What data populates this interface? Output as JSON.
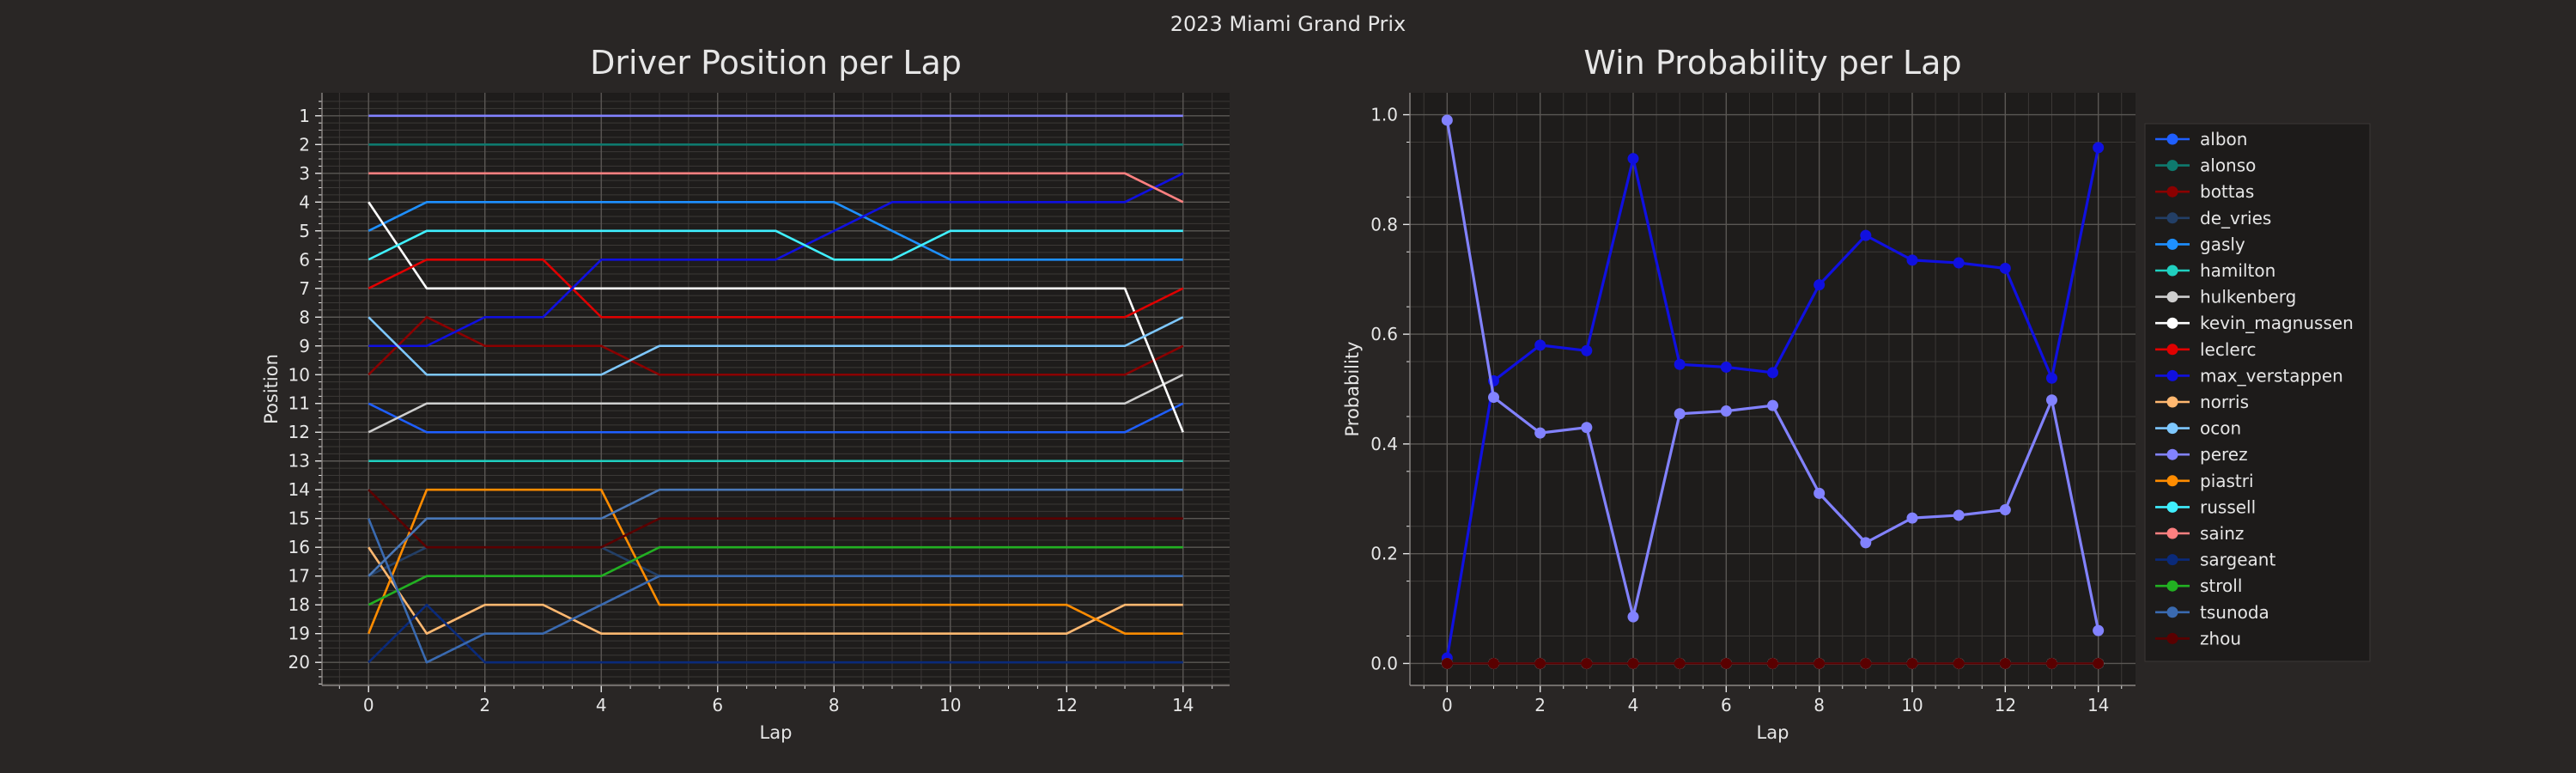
{
  "suptitle": "2023 Miami Grand Prix",
  "colors": {
    "background": "#292625",
    "plot_bg": "#1e1c1b",
    "text": "#e6e6e6",
    "grid_major": "#5a5754",
    "grid_minor": "#3b3836"
  },
  "chart_data": [
    {
      "type": "line",
      "title": "Driver Position per Lap",
      "xlabel": "Lap",
      "ylabel": "Position",
      "x": [
        0,
        1,
        2,
        3,
        4,
        5,
        6,
        7,
        8,
        9,
        10,
        11,
        12,
        13,
        14
      ],
      "xlim": [
        -0.8,
        14.8
      ],
      "xticks": [
        0,
        2,
        4,
        6,
        8,
        10,
        12,
        14
      ],
      "ylim": [
        20.8,
        0.2
      ],
      "yticks": [
        1,
        2,
        3,
        4,
        5,
        6,
        7,
        8,
        9,
        10,
        11,
        12,
        13,
        14,
        15,
        16,
        17,
        18,
        19,
        20
      ],
      "y_inverted": true,
      "grid": true,
      "legend": "none",
      "series": [
        {
          "color": "#1f5fff",
          "values": [
            11,
            12,
            12,
            12,
            12,
            12,
            12,
            12,
            12,
            12,
            12,
            12,
            12,
            12,
            11
          ]
        },
        {
          "color": "#0e7a6e",
          "values": [
            2,
            2,
            2,
            2,
            2,
            2,
            2,
            2,
            2,
            2,
            2,
            2,
            2,
            2,
            2
          ]
        },
        {
          "color": "#8b0000",
          "values": [
            10,
            8,
            9,
            9,
            9,
            10,
            10,
            10,
            10,
            10,
            10,
            10,
            10,
            10,
            9
          ]
        },
        {
          "color": "#233f66",
          "values": [
            17,
            16,
            16,
            16,
            16,
            17,
            17,
            17,
            17,
            17,
            17,
            17,
            17,
            17,
            17
          ]
        },
        {
          "color": "#1e90ff",
          "values": [
            5,
            4,
            4,
            4,
            4,
            4,
            4,
            4,
            4,
            5,
            6,
            6,
            6,
            6,
            6
          ]
        },
        {
          "color": "#20d0c0",
          "values": [
            13,
            13,
            13,
            13,
            13,
            13,
            13,
            13,
            13,
            13,
            13,
            13,
            13,
            13,
            13
          ]
        },
        {
          "color": "#cfcfcf",
          "values": [
            12,
            11,
            11,
            11,
            11,
            11,
            11,
            11,
            11,
            11,
            11,
            11,
            11,
            11,
            10
          ]
        },
        {
          "color": "#ffffff",
          "values": [
            4,
            7,
            7,
            7,
            7,
            7,
            7,
            7,
            7,
            7,
            7,
            7,
            7,
            7,
            12
          ]
        },
        {
          "color": "#e00000",
          "values": [
            7,
            6,
            6,
            6,
            8,
            8,
            8,
            8,
            8,
            8,
            8,
            8,
            8,
            8,
            7
          ]
        },
        {
          "color": "#1010e0",
          "values": [
            9,
            9,
            8,
            8,
            6,
            6,
            6,
            6,
            5,
            4,
            4,
            4,
            4,
            4,
            3
          ]
        },
        {
          "color": "#ffb870",
          "values": [
            16,
            19,
            18,
            18,
            19,
            19,
            19,
            19,
            19,
            19,
            19,
            19,
            19,
            18,
            18
          ]
        },
        {
          "color": "#7ec8ff",
          "values": [
            8,
            10,
            10,
            10,
            10,
            9,
            9,
            9,
            9,
            9,
            9,
            9,
            9,
            9,
            8
          ]
        },
        {
          "color": "#8282ff",
          "values": [
            1,
            1,
            1,
            1,
            1,
            1,
            1,
            1,
            1,
            1,
            1,
            1,
            1,
            1,
            1
          ]
        },
        {
          "color": "#ff8c00",
          "values": [
            19,
            14,
            14,
            14,
            14,
            18,
            18,
            18,
            18,
            18,
            18,
            18,
            18,
            19,
            19
          ]
        },
        {
          "color": "#40f0ff",
          "values": [
            6,
            5,
            5,
            5,
            5,
            5,
            5,
            5,
            6,
            6,
            5,
            5,
            5,
            5,
            5
          ]
        },
        {
          "color": "#ff8080",
          "values": [
            3,
            3,
            3,
            3,
            3,
            3,
            3,
            3,
            3,
            3,
            3,
            3,
            3,
            3,
            4
          ]
        },
        {
          "color": "#0a2a7a",
          "values": [
            20,
            18,
            20,
            20,
            20,
            20,
            20,
            20,
            20,
            20,
            20,
            20,
            20,
            20,
            20
          ]
        },
        {
          "color": "#22b022",
          "values": [
            18,
            17,
            17,
            17,
            17,
            16,
            16,
            16,
            16,
            16,
            16,
            16,
            16,
            16,
            16
          ]
        },
        {
          "color": "#3a6ab0",
          "values": [
            15,
            20,
            19,
            19,
            18,
            17,
            17,
            17,
            17,
            17,
            17,
            17,
            17,
            17,
            17
          ]
        },
        {
          "color": "#5a0000",
          "values": [
            14,
            16,
            16,
            16,
            16,
            15,
            15,
            15,
            15,
            15,
            15,
            15,
            15,
            15,
            15
          ]
        },
        {
          "color": "#4a78b8",
          "values": [
            17,
            15,
            15,
            15,
            15,
            14,
            14,
            14,
            14,
            14,
            14,
            14,
            14,
            14,
            14
          ]
        }
      ]
    },
    {
      "type": "line",
      "title": "Win Probability per Lap",
      "xlabel": "Lap",
      "ylabel": "Probability",
      "x": [
        0,
        1,
        2,
        3,
        4,
        5,
        6,
        7,
        8,
        9,
        10,
        11,
        12,
        13,
        14
      ],
      "xlim": [
        -0.8,
        14.8
      ],
      "xticks": [
        0,
        2,
        4,
        6,
        8,
        10,
        12,
        14
      ],
      "ylim": [
        -0.04,
        1.04
      ],
      "yticks": [
        0.0,
        0.2,
        0.4,
        0.6,
        0.8,
        1.0
      ],
      "ytick_labels": [
        "0.0",
        "0.2",
        "0.4",
        "0.6",
        "0.8",
        "1.0"
      ],
      "grid": true,
      "legend": "right",
      "series": [
        {
          "name": "albon",
          "color": "#1f5fff",
          "values": [
            0,
            0,
            0,
            0,
            0,
            0,
            0,
            0,
            0,
            0,
            0,
            0,
            0,
            0,
            0
          ]
        },
        {
          "name": "alonso",
          "color": "#0e7a6e",
          "values": [
            0,
            0,
            0,
            0,
            0,
            0,
            0,
            0,
            0,
            0,
            0,
            0,
            0,
            0,
            0
          ]
        },
        {
          "name": "bottas",
          "color": "#8b0000",
          "values": [
            0,
            0,
            0,
            0,
            0,
            0,
            0,
            0,
            0,
            0,
            0,
            0,
            0,
            0,
            0
          ]
        },
        {
          "name": "de_vries",
          "color": "#233f66",
          "values": [
            0,
            0,
            0,
            0,
            0,
            0,
            0,
            0,
            0,
            0,
            0,
            0,
            0,
            0,
            0
          ]
        },
        {
          "name": "gasly",
          "color": "#1e90ff",
          "values": [
            0,
            0,
            0,
            0,
            0,
            0,
            0,
            0,
            0,
            0,
            0,
            0,
            0,
            0,
            0
          ]
        },
        {
          "name": "hamilton",
          "color": "#20d0c0",
          "values": [
            0,
            0,
            0,
            0,
            0,
            0,
            0,
            0,
            0,
            0,
            0,
            0,
            0,
            0,
            0
          ]
        },
        {
          "name": "hulkenberg",
          "color": "#cfcfcf",
          "values": [
            0,
            0,
            0,
            0,
            0,
            0,
            0,
            0,
            0,
            0,
            0,
            0,
            0,
            0,
            0
          ]
        },
        {
          "name": "kevin_magnussen",
          "color": "#ffffff",
          "values": [
            0,
            0,
            0,
            0,
            0,
            0,
            0,
            0,
            0,
            0,
            0,
            0,
            0,
            0,
            0
          ]
        },
        {
          "name": "leclerc",
          "color": "#e00000",
          "values": [
            0,
            0,
            0,
            0,
            0,
            0,
            0,
            0,
            0,
            0,
            0,
            0,
            0,
            0,
            0
          ]
        },
        {
          "name": "max_verstappen",
          "color": "#1010e0",
          "values": [
            0.01,
            0.515,
            0.58,
            0.57,
            0.92,
            0.545,
            0.54,
            0.53,
            0.69,
            0.78,
            0.735,
            0.73,
            0.72,
            0.52,
            0.94
          ]
        },
        {
          "name": "norris",
          "color": "#ffb870",
          "values": [
            0,
            0,
            0,
            0,
            0,
            0,
            0,
            0,
            0,
            0,
            0,
            0,
            0,
            0,
            0
          ]
        },
        {
          "name": "ocon",
          "color": "#7ec8ff",
          "values": [
            0,
            0,
            0,
            0,
            0,
            0,
            0,
            0,
            0,
            0,
            0,
            0,
            0,
            0,
            0
          ]
        },
        {
          "name": "perez",
          "color": "#8282ff",
          "values": [
            0.99,
            0.485,
            0.42,
            0.43,
            0.085,
            0.455,
            0.46,
            0.47,
            0.31,
            0.22,
            0.265,
            0.27,
            0.28,
            0.48,
            0.06
          ]
        },
        {
          "name": "piastri",
          "color": "#ff8c00",
          "values": [
            0,
            0,
            0,
            0,
            0,
            0,
            0,
            0,
            0,
            0,
            0,
            0,
            0,
            0,
            0
          ]
        },
        {
          "name": "russell",
          "color": "#40f0ff",
          "values": [
            0,
            0,
            0,
            0,
            0,
            0,
            0,
            0,
            0,
            0,
            0,
            0,
            0,
            0,
            0
          ]
        },
        {
          "name": "sainz",
          "color": "#ff8080",
          "values": [
            0,
            0,
            0,
            0,
            0,
            0,
            0,
            0,
            0,
            0,
            0,
            0,
            0,
            0,
            0
          ]
        },
        {
          "name": "sargeant",
          "color": "#0a2a7a",
          "values": [
            0,
            0,
            0,
            0,
            0,
            0,
            0,
            0,
            0,
            0,
            0,
            0,
            0,
            0,
            0
          ]
        },
        {
          "name": "stroll",
          "color": "#22b022",
          "values": [
            0,
            0,
            0,
            0,
            0,
            0,
            0,
            0,
            0,
            0,
            0,
            0,
            0,
            0,
            0
          ]
        },
        {
          "name": "tsunoda",
          "color": "#3a6ab0",
          "values": [
            0,
            0,
            0,
            0,
            0,
            0,
            0,
            0,
            0,
            0,
            0,
            0,
            0,
            0,
            0
          ]
        },
        {
          "name": "zhou",
          "color": "#5a0000",
          "values": [
            0,
            0,
            0,
            0,
            0,
            0,
            0,
            0,
            0,
            0,
            0,
            0,
            0,
            0,
            0
          ]
        }
      ]
    }
  ]
}
